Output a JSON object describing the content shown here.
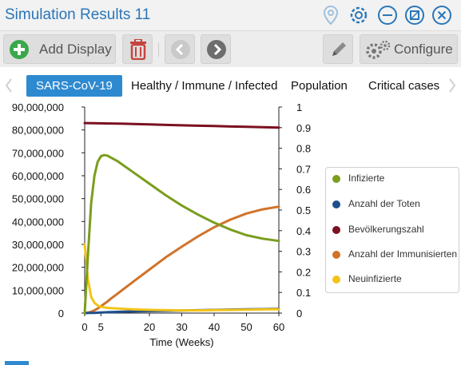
{
  "window": {
    "title": "Simulation Results 11",
    "icons": [
      "location-pin-icon",
      "gear-icon",
      "minimize-icon",
      "maximize-icon",
      "close-icon"
    ]
  },
  "toolbar": {
    "add_display_label": "Add Display",
    "configure_label": "Configure",
    "icons": [
      "plus-icon",
      "trash-icon",
      "chevron-left-icon",
      "chevron-right-icon",
      "pencil-icon",
      "gears-icon"
    ]
  },
  "tabs": [
    {
      "label": "SARS-CoV-19",
      "active": true
    },
    {
      "label": "Healthy / Immune / Infected",
      "active": false
    },
    {
      "label": "Population",
      "active": false
    },
    {
      "label": "Critical cases",
      "active": false
    }
  ],
  "colors": {
    "accent": "#2e8ad0",
    "title": "#2a76b8",
    "infizierte": "#7a9d1e",
    "toten": "#1f4e8c",
    "bevoelkerung": "#7b1020",
    "immunisierten": "#d0732a",
    "neuinfizierte": "#f2c318"
  },
  "chart_data": {
    "type": "line",
    "xlabel": "Time (Weeks)",
    "ylabel": "",
    "xlim": [
      0,
      60
    ],
    "ylim": [
      0,
      90000000
    ],
    "y2lim": [
      0,
      1
    ],
    "x_ticks": [
      "0",
      "5",
      "20",
      "30",
      "40",
      "50",
      "60"
    ],
    "x_tick_values": [
      0,
      5,
      20,
      30,
      40,
      50,
      60
    ],
    "y_ticks": [
      "0",
      "10,000,000",
      "20,000,000",
      "30,000,000",
      "40,000,000",
      "50,000,000",
      "60,000,000",
      "70,000,000",
      "80,000,000",
      "90,000,000"
    ],
    "y_tick_values": [
      0,
      10000000,
      20000000,
      30000000,
      40000000,
      50000000,
      60000000,
      70000000,
      80000000,
      90000000
    ],
    "y2_ticks": [
      "0",
      "0.1",
      "0.2",
      "0.3",
      "0.4",
      "0.5",
      "0.6",
      "0.7",
      "0.8",
      "0.9",
      "1"
    ],
    "y2_tick_values": [
      0,
      0.1,
      0.2,
      0.3,
      0.4,
      0.5,
      0.6,
      0.7,
      0.8,
      0.9,
      1
    ],
    "x": [
      0,
      1,
      2,
      3,
      4,
      5,
      6,
      7,
      8,
      10,
      12,
      15,
      20,
      25,
      30,
      35,
      40,
      45,
      50,
      55,
      60
    ],
    "legend_position": "right",
    "grid": false,
    "series": [
      {
        "name": "Infizierte",
        "color": "#7a9d1e",
        "values": [
          0,
          25000000,
          48000000,
          60000000,
          66000000,
          68500000,
          69000000,
          68800000,
          68000000,
          66500000,
          64500000,
          61500000,
          56500000,
          51500000,
          47000000,
          43000000,
          39500000,
          36500000,
          34000000,
          32500000,
          31500000
        ]
      },
      {
        "name": "Anzahl der Toten",
        "color": "#1f4e8c",
        "values": [
          0,
          20000,
          60000,
          120000,
          180000,
          250000,
          310000,
          370000,
          420000,
          520000,
          600000,
          720000,
          870000,
          1000000,
          1130000,
          1260000,
          1400000,
          1530000,
          1650000,
          1760000,
          1870000
        ]
      },
      {
        "name": "Bevölkerungszahl",
        "color": "#7b1020",
        "values": [
          83000000,
          82980000,
          82960000,
          82930000,
          82900000,
          82880000,
          82850000,
          82830000,
          82800000,
          82750000,
          82700000,
          82600000,
          82400000,
          82200000,
          82000000,
          81850000,
          81700000,
          81500000,
          81350000,
          81200000,
          81000000
        ]
      },
      {
        "name": "Anzahl der Immunisierten",
        "color": "#d0732a",
        "values": [
          0,
          200000,
          600000,
          1200000,
          2000000,
          3000000,
          4000000,
          5000000,
          6200000,
          8300000,
          10500000,
          13700000,
          19000000,
          24300000,
          29000000,
          33500000,
          37500000,
          40800000,
          43500000,
          45300000,
          46500000
        ]
      },
      {
        "name": "Neuinfizierte",
        "color": "#f2c318",
        "values": [
          30000000,
          15000000,
          7000000,
          4500000,
          3300000,
          2800000,
          2500000,
          2300000,
          2200000,
          2000000,
          1800000,
          1600000,
          1400000,
          1300000,
          1200000,
          1200000,
          1300000,
          1400000,
          1500000,
          1600000,
          1700000
        ]
      }
    ]
  }
}
